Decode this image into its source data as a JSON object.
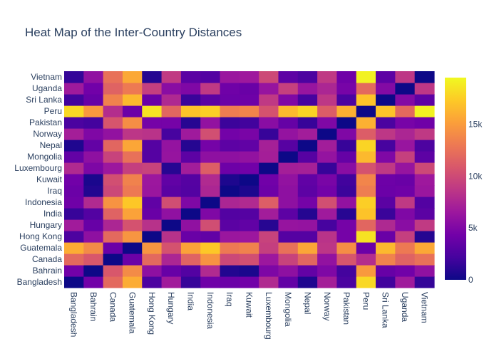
{
  "chart_data": {
    "type": "heatmap",
    "title": "Heat Map of the Inter-Country Distances",
    "xlabel": "",
    "ylabel": "",
    "countries": [
      "Bangladesh",
      "Bahrain",
      "Canada",
      "Guatemala",
      "Hong Kong",
      "Hungary",
      "India",
      "Indonesia",
      "Iraq",
      "Kuwait",
      "Luxembourg",
      "Mongolia",
      "Nepal",
      "Norway",
      "Pakistan",
      "Peru",
      "Sri Lanka",
      "Uganda",
      "Vietnam"
    ],
    "x": [
      "Bangladesh",
      "Bahrain",
      "Canada",
      "Guatemala",
      "Hong Kong",
      "Hungary",
      "India",
      "Indonesia",
      "Iraq",
      "Kuwait",
      "Luxembourg",
      "Mongolia",
      "Nepal",
      "Norway",
      "Pakistan",
      "Peru",
      "Sri Lanka",
      "Uganda",
      "Vietnam"
    ],
    "y": [
      "Bangladesh",
      "Bahrain",
      "Canada",
      "Guatemala",
      "Hong Kong",
      "Hungary",
      "India",
      "Indonesia",
      "Iraq",
      "Kuwait",
      "Luxembourg",
      "Mongolia",
      "Nepal",
      "Norway",
      "Pakistan",
      "Peru",
      "Sri Lanka",
      "Uganda",
      "Vietnam"
    ],
    "z": [
      [
        0,
        4300,
        12000,
        15800,
        2500,
        6800,
        1600,
        4200,
        4000,
        4300,
        7800,
        3600,
        700,
        7000,
        2400,
        18000,
        2000,
        6700,
        1500
      ],
      [
        4300,
        0,
        10800,
        14000,
        5800,
        3800,
        2800,
        7800,
        800,
        500,
        4900,
        5800,
        3600,
        5000,
        2100,
        14800,
        3800,
        4300,
        5900
      ],
      [
        12000,
        10800,
        0,
        4000,
        12000,
        7500,
        11600,
        14500,
        9800,
        10300,
        6500,
        9500,
        11800,
        6000,
        10700,
        8000,
        13500,
        11600,
        12500
      ],
      [
        15800,
        14000,
        4000,
        0,
        14600,
        10500,
        15300,
        17200,
        13000,
        13500,
        9200,
        12500,
        15500,
        8600,
        14200,
        4000,
        16500,
        13000,
        15600
      ],
      [
        2500,
        5800,
        12000,
        14600,
        0,
        8300,
        3900,
        3500,
        6400,
        6500,
        9500,
        2900,
        2900,
        8400,
        4500,
        18500,
        3900,
        9200,
        900
      ],
      [
        6800,
        3800,
        7500,
        10500,
        8300,
        0,
        5900,
        10200,
        3200,
        3500,
        1000,
        6200,
        6100,
        2200,
        4500,
        11800,
        7700,
        5500,
        8900
      ],
      [
        1600,
        2800,
        11600,
        15300,
        3900,
        5900,
        0,
        5000,
        2800,
        2900,
        6900,
        3300,
        900,
        6700,
        1000,
        17000,
        1700,
        5000,
        3200
      ],
      [
        4200,
        7800,
        14500,
        17200,
        3500,
        10200,
        5000,
        0,
        7500,
        7800,
        11300,
        5800,
        4500,
        10300,
        6000,
        17500,
        3200,
        8800,
        2800
      ],
      [
        4000,
        800,
        9800,
        13000,
        6400,
        3200,
        2800,
        7500,
        0,
        600,
        4100,
        5800,
        3300,
        4400,
        1800,
        13200,
        4000,
        4200,
        6400
      ],
      [
        4300,
        500,
        10300,
        13500,
        6500,
        3500,
        2900,
        7800,
        600,
        0,
        4300,
        6000,
        3500,
        4700,
        2000,
        13700,
        4100,
        3900,
        6600
      ],
      [
        7800,
        4900,
        6500,
        9200,
        9500,
        1000,
        6900,
        11300,
        4100,
        4300,
        0,
        7000,
        7100,
        1600,
        5500,
        10500,
        8800,
        6200,
        9900
      ],
      [
        3600,
        5800,
        9500,
        12500,
        2900,
        6200,
        3300,
        5800,
        5800,
        6000,
        7000,
        0,
        3000,
        6100,
        3700,
        16500,
        5000,
        9300,
        3300
      ],
      [
        700,
        3600,
        11800,
        15500,
        2900,
        6100,
        900,
        4500,
        3300,
        3500,
        7100,
        3000,
        0,
        6900,
        1600,
        17800,
        2200,
        6300,
        2500
      ],
      [
        7000,
        5000,
        6000,
        8600,
        8400,
        2200,
        6700,
        10300,
        4400,
        4700,
        1600,
        6100,
        6900,
        0,
        5000,
        11200,
        8700,
        7500,
        8800
      ],
      [
        2400,
        2100,
        10700,
        14200,
        4500,
        4500,
        1000,
        6000,
        1800,
        2000,
        5500,
        3700,
        1600,
        5000,
        0,
        16000,
        2400,
        4600,
        4200
      ],
      [
        18000,
        14800,
        8000,
        4000,
        18500,
        11800,
        17000,
        17500,
        13200,
        13700,
        10500,
        16500,
        17800,
        11200,
        16000,
        0,
        17000,
        12000,
        19200
      ],
      [
        2000,
        3800,
        13500,
        16500,
        3900,
        7700,
        1700,
        3200,
        4000,
        4100,
        8800,
        5000,
        2200,
        8700,
        2400,
        17000,
        0,
        5200,
        3300
      ],
      [
        6700,
        4300,
        11600,
        13000,
        9200,
        5500,
        5000,
        8800,
        4200,
        3900,
        6200,
        9300,
        6300,
        7500,
        4600,
        12000,
        5200,
        0,
        8700
      ],
      [
        1500,
        5900,
        12500,
        15600,
        900,
        8900,
        3200,
        2800,
        6400,
        6600,
        9900,
        3300,
        2500,
        8800,
        4200,
        19200,
        3300,
        8700,
        0
      ]
    ],
    "zmin": 0,
    "zmax": 19500,
    "colorscale": [
      "#0d0887",
      "#46039f",
      "#7201a8",
      "#9c179e",
      "#bd3786",
      "#d8576b",
      "#ed7953",
      "#fb9f3a",
      "#fdca26",
      "#f0f921"
    ],
    "colorbar_ticks": [
      0,
      5000,
      10000,
      15000
    ],
    "colorbar_tick_labels": [
      "0",
      "5k",
      "10k",
      "15k"
    ]
  }
}
